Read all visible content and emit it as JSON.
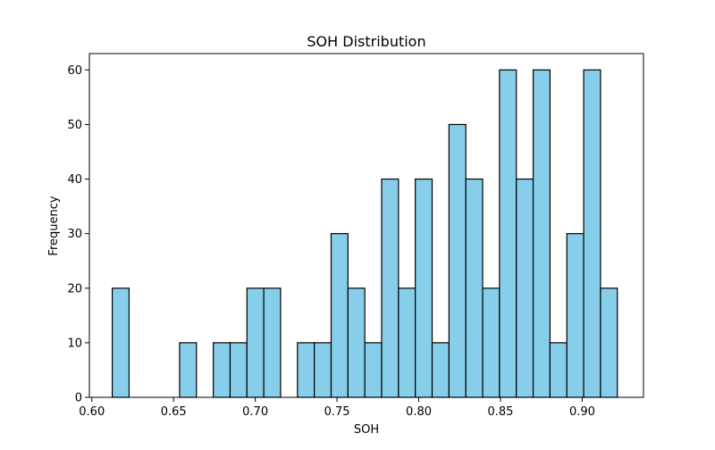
{
  "chart_data": {
    "type": "bar",
    "title": "SOH Distribution",
    "xlabel": "SOH",
    "ylabel": "Frequency",
    "xlim": [
      0.5985,
      0.9375
    ],
    "ylim": [
      0,
      63
    ],
    "xticks": [
      0.6,
      0.65,
      0.7,
      0.75,
      0.8,
      0.85,
      0.9
    ],
    "xtick_labels": [
      "0.60",
      "0.65",
      "0.70",
      "0.75",
      "0.80",
      "0.85",
      "0.90"
    ],
    "yticks": [
      0,
      10,
      20,
      30,
      40,
      50,
      60
    ],
    "ytick_labels": [
      "0",
      "10",
      "20",
      "30",
      "40",
      "50",
      "60"
    ],
    "bin_start": 0.6125,
    "bin_width": 0.0103,
    "values": [
      20,
      0,
      0,
      0,
      10,
      0,
      10,
      10,
      20,
      20,
      0,
      10,
      10,
      30,
      20,
      10,
      40,
      20,
      40,
      10,
      50,
      40,
      20,
      60,
      40,
      60,
      10,
      30,
      60,
      20
    ],
    "bar_color": "#87ceeb",
    "edge_color": "#000000",
    "grid": false
  }
}
